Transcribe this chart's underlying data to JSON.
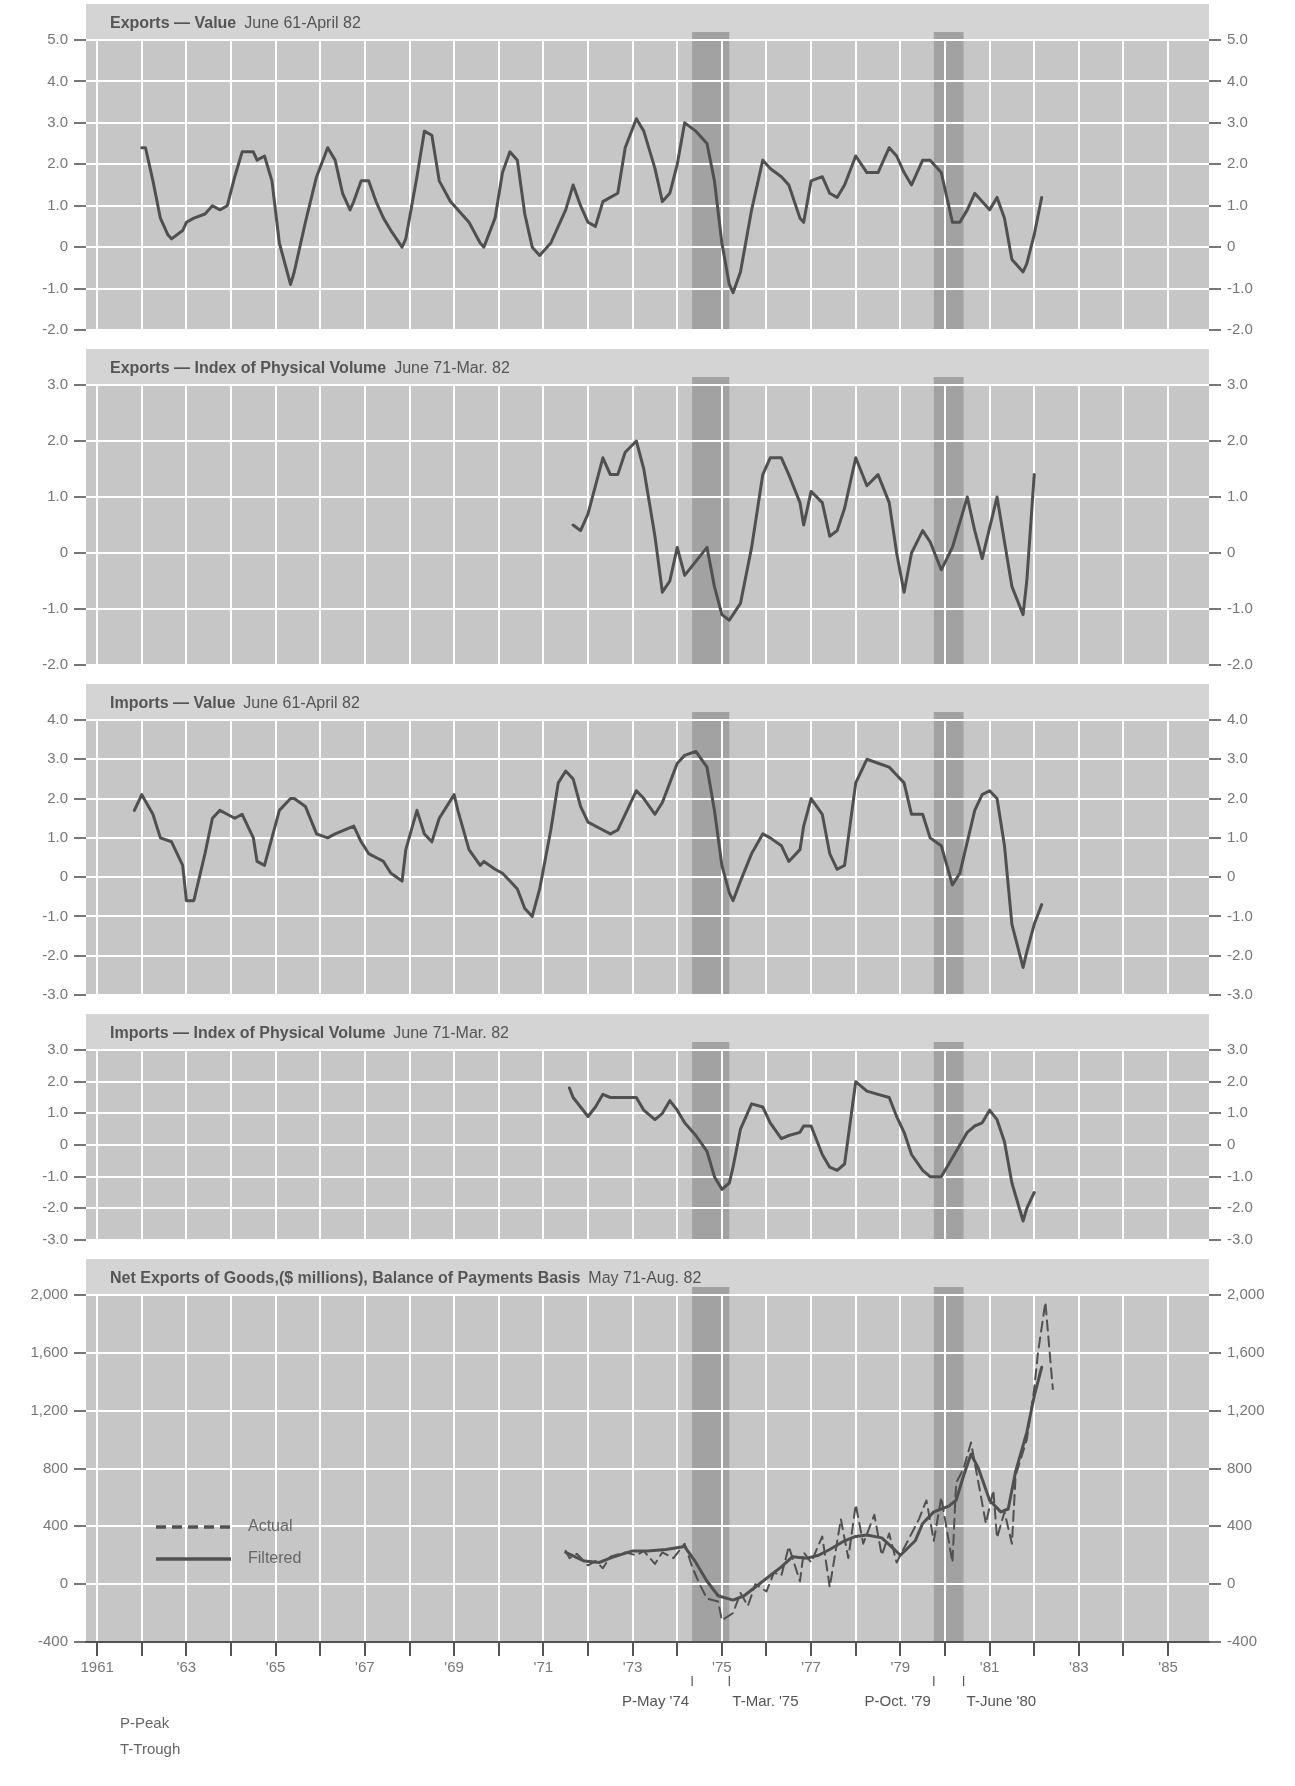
{
  "chart_data": [
    {
      "type": "line",
      "title": "Exports — Value",
      "subtitle": "June 61-April 82",
      "series": [
        {
          "color": "#505050",
          "x": [
            "1962-01",
            "1962-02",
            "1962-04",
            "1962-06",
            "1962-08",
            "1962-09",
            "1962-12",
            "1963-01",
            "1963-03",
            "1963-06",
            "1963-08",
            "1963-10",
            "1963-12",
            "1964-02",
            "1964-04",
            "1964-07",
            "1964-08",
            "1964-10",
            "1964-12",
            "1965-02",
            "1965-05",
            "1965-06",
            "1965-09",
            "1965-12",
            "1966-03",
            "1966-05",
            "1966-07",
            "1966-09",
            "1966-10",
            "1966-12",
            "1967-02",
            "1967-04",
            "1967-06",
            "1967-08",
            "1967-11",
            "1967-12",
            "1968-03",
            "1968-05",
            "1968-07",
            "1968-09",
            "1968-12",
            "1969-02",
            "1969-05",
            "1969-08",
            "1969-09",
            "1969-12",
            "1970-02",
            "1970-04",
            "1970-06",
            "1970-08",
            "1970-10",
            "1970-12",
            "1971-03",
            "1971-05",
            "1971-07",
            "1971-09",
            "1971-11",
            "1972-01",
            "1972-03",
            "1972-05",
            "1972-07",
            "1972-09",
            "1972-11",
            "1973-02",
            "1973-04",
            "1973-07",
            "1973-09",
            "1973-11",
            "1974-01",
            "1974-03",
            "1974-06",
            "1974-09",
            "1974-11",
            "1975-01",
            "1975-03",
            "1975-04",
            "1975-06",
            "1975-09",
            "1975-12",
            "1976-02",
            "1976-05",
            "1976-07",
            "1976-10",
            "1976-11",
            "1977-01",
            "1977-04",
            "1977-06",
            "1977-08",
            "1977-10",
            "1978-01",
            "1978-04",
            "1978-07",
            "1978-10",
            "1978-12",
            "1979-02",
            "1979-04",
            "1979-07",
            "1979-09",
            "1979-12",
            "1980-03",
            "1980-05",
            "1980-07",
            "1980-09",
            "1980-11",
            "1981-01",
            "1981-03",
            "1981-05",
            "1981-07",
            "1981-10",
            "1981-11",
            "1982-01",
            "1982-03"
          ],
          "values": [
            2.4,
            2.4,
            1.6,
            0.7,
            0.3,
            0.2,
            0.4,
            0.6,
            0.7,
            0.8,
            1.0,
            0.9,
            1.0,
            1.7,
            2.3,
            2.3,
            2.1,
            2.2,
            1.6,
            0.1,
            -0.9,
            -0.6,
            0.6,
            1.7,
            2.4,
            2.1,
            1.3,
            0.9,
            1.1,
            1.6,
            1.6,
            1.1,
            0.7,
            0.4,
            0,
            0.2,
            1.7,
            2.8,
            2.7,
            1.6,
            1.1,
            0.9,
            0.6,
            0.1,
            0,
            0.7,
            1.8,
            2.3,
            2.1,
            0.8,
            0,
            -0.2,
            0.1,
            0.5,
            0.9,
            1.5,
            1.0,
            0.6,
            0.5,
            1.1,
            1.2,
            1.3,
            2.4,
            3.1,
            2.8,
            1.9,
            1.1,
            1.3,
            2.0,
            3.0,
            2.8,
            2.5,
            1.6,
            0.1,
            -0.9,
            -1.1,
            -0.6,
            0.9,
            2.1,
            1.9,
            1.7,
            1.5,
            0.7,
            0.6,
            1.6,
            1.7,
            1.3,
            1.2,
            1.5,
            2.2,
            1.8,
            1.8,
            2.4,
            2.2,
            1.8,
            1.5,
            2.1,
            2.1,
            1.8,
            0.6,
            0.6,
            0.9,
            1.3,
            1.1,
            0.9,
            1.2,
            0.7,
            -0.3,
            -0.6,
            -0.4,
            0.3,
            1.2
          ]
        }
      ],
      "xlim": [
        "1960-10",
        "1985-12"
      ],
      "xticks": [
        "1961",
        "1962",
        "1963",
        "1964",
        "1965",
        "1966",
        "1967",
        "1968",
        "1969",
        "1970",
        "1971",
        "1972",
        "1973",
        "1974",
        "1975",
        "1976",
        "1977",
        "1978",
        "1979",
        "1980",
        "1981",
        "1982",
        "1983",
        "1984",
        "1985"
      ],
      "ylim": [
        -2,
        5
      ],
      "yticks": [
        {
          "value": -2,
          "label": "-2.0"
        },
        {
          "value": -1,
          "label": "-1.0"
        },
        0,
        {
          "value": 1,
          "label": "1.0"
        },
        {
          "value": 2,
          "label": "2.0"
        },
        {
          "value": 3,
          "label": "3.0"
        },
        {
          "value": 4,
          "label": "4.0"
        },
        {
          "value": 5,
          "label": "5.0"
        }
      ],
      "y2lim": [
        -2,
        5
      ],
      "y2ticks": [
        {
          "value": -2,
          "label": "-2.0"
        },
        {
          "value": -1,
          "label": "-1.0"
        },
        0,
        {
          "value": 1,
          "label": "1.0"
        },
        {
          "value": 2,
          "label": "2.0"
        },
        {
          "value": 3,
          "label": "3.0"
        },
        {
          "value": 4,
          "label": "4.0"
        },
        {
          "value": 5,
          "label": "5.0"
        }
      ],
      "bands": [
        {
          "axis": "x",
          "from": "1974-05",
          "to": "1975-03",
          "color": "#a2a2a2"
        },
        {
          "axis": "x",
          "from": "1979-10",
          "to": "1980-06",
          "color": "#a2a2a2"
        }
      ],
      "grid": true,
      "tick_labels": "y"
    },
    {
      "type": "line",
      "title": "Exports — Index of Physical Volume",
      "subtitle": "June 71-Mar. 82",
      "series": [
        {
          "color": "#505050",
          "x": [
            "1971-09",
            "1971-11",
            "1972-01",
            "1972-05",
            "1972-07",
            "1972-09",
            "1972-11",
            "1973-02",
            "1973-04",
            "1973-07",
            "1973-09",
            "1973-11",
            "1974-01",
            "1974-03",
            "1974-09",
            "1974-11",
            "1975-01",
            "1975-03",
            "1975-06",
            "1975-09",
            "1975-12",
            "1976-02",
            "1976-05",
            "1976-07",
            "1976-10",
            "1976-11",
            "1977-01",
            "1977-04",
            "1977-06",
            "1977-08",
            "1977-10",
            "1978-01",
            "1978-04",
            "1978-07",
            "1978-10",
            "1978-12",
            "1979-02",
            "1979-04",
            "1979-07",
            "1979-09",
            "1979-12",
            "1980-03",
            "1980-07",
            "1980-09",
            "1980-11",
            "1981-03",
            "1981-05",
            "1981-07",
            "1981-10",
            "1981-11",
            "1982-01"
          ],
          "values": [
            0.5,
            0.4,
            0.7,
            1.7,
            1.4,
            1.4,
            1.8,
            2.0,
            1.5,
            0.3,
            -0.7,
            -0.5,
            0.1,
            -0.4,
            0.1,
            -0.6,
            -1.1,
            -1.2,
            -0.9,
            0.1,
            1.4,
            1.7,
            1.7,
            1.4,
            0.9,
            0.5,
            1.1,
            0.9,
            0.3,
            0.4,
            0.8,
            1.7,
            1.2,
            1.4,
            0.9,
            0,
            -0.7,
            0,
            0.4,
            0.2,
            -0.3,
            0.1,
            1.0,
            0.4,
            -0.1,
            1.0,
            0.2,
            -0.6,
            -1.1,
            -0.5,
            1.4
          ]
        }
      ],
      "xlim": [
        "1960-10",
        "1985-12"
      ],
      "xticks": [
        "1961",
        "1962",
        "1963",
        "1964",
        "1965",
        "1966",
        "1967",
        "1968",
        "1969",
        "1970",
        "1971",
        "1972",
        "1973",
        "1974",
        "1975",
        "1976",
        "1977",
        "1978",
        "1979",
        "1980",
        "1981",
        "1982",
        "1983",
        "1984",
        "1985"
      ],
      "ylim": [
        -2,
        3
      ],
      "yticks": [
        {
          "value": -2,
          "label": "-2.0"
        },
        {
          "value": -1,
          "label": "-1.0"
        },
        0,
        {
          "value": 1,
          "label": "1.0"
        },
        {
          "value": 2,
          "label": "2.0"
        },
        {
          "value": 3,
          "label": "3.0"
        }
      ],
      "y2lim": [
        -2,
        3
      ],
      "y2ticks": [
        {
          "value": -2,
          "label": "-2.0"
        },
        {
          "value": -1,
          "label": "-1.0"
        },
        0,
        {
          "value": 1,
          "label": "1.0"
        },
        {
          "value": 2,
          "label": "2.0"
        },
        {
          "value": 3,
          "label": "3.0"
        }
      ],
      "bands": [
        {
          "axis": "x",
          "from": "1974-05",
          "to": "1975-03",
          "color": "#a2a2a2"
        },
        {
          "axis": "x",
          "from": "1979-10",
          "to": "1980-06",
          "color": "#a2a2a2"
        }
      ],
      "grid": true,
      "tick_labels": "y"
    },
    {
      "type": "line",
      "title": "Imports — Value",
      "subtitle": "June 61-April 82",
      "series": [
        {
          "color": "#505050",
          "x": [
            "1961-11",
            "1962-01",
            "1962-04",
            "1962-06",
            "1962-09",
            "1962-12",
            "1963-01",
            "1963-03",
            "1963-06",
            "1963-08",
            "1963-10",
            "1963-12",
            "1964-02",
            "1964-04",
            "1964-07",
            "1964-08",
            "1964-10",
            "1964-12",
            "1965-02",
            "1965-05",
            "1965-06",
            "1965-09",
            "1965-12",
            "1966-03",
            "1966-05",
            "1966-10",
            "1966-12",
            "1967-02",
            "1967-04",
            "1967-06",
            "1967-08",
            "1967-11",
            "1967-12",
            "1968-03",
            "1968-05",
            "1968-07",
            "1968-09",
            "1969-01",
            "1969-02",
            "1969-05",
            "1969-08",
            "1969-09",
            "1969-12",
            "1970-02",
            "1970-04",
            "1970-06",
            "1970-08",
            "1970-10",
            "1970-12",
            "1971-03",
            "1971-05",
            "1971-07",
            "1971-09",
            "1971-11",
            "1972-01",
            "1972-05",
            "1972-07",
            "1972-09",
            "1972-11",
            "1973-02",
            "1973-04",
            "1973-07",
            "1973-09",
            "1973-11",
            "1974-01",
            "1974-03",
            "1974-06",
            "1974-09",
            "1974-11",
            "1975-01",
            "1975-03",
            "1975-04",
            "1975-06",
            "1975-09",
            "1975-12",
            "1976-02",
            "1976-05",
            "1976-07",
            "1976-10",
            "1976-11",
            "1977-01",
            "1977-04",
            "1977-06",
            "1977-08",
            "1977-10",
            "1978-01",
            "1978-04",
            "1978-07",
            "1978-10",
            "1978-12",
            "1979-02",
            "1979-04",
            "1979-07",
            "1979-09",
            "1979-12",
            "1980-03",
            "1980-05",
            "1980-07",
            "1980-09",
            "1980-11",
            "1981-01",
            "1981-03",
            "1981-05",
            "1981-07",
            "1981-10",
            "1981-11",
            "1982-01",
            "1982-03"
          ],
          "values": [
            1.7,
            2.1,
            1.6,
            1.0,
            0.9,
            0.3,
            -0.6,
            -0.6,
            0.6,
            1.5,
            1.7,
            1.6,
            1.5,
            1.6,
            1.0,
            0.4,
            0.3,
            1.0,
            1.7,
            2.0,
            2.0,
            1.8,
            1.1,
            1.0,
            1.1,
            1.3,
            0.9,
            0.6,
            0.5,
            0.4,
            0.1,
            -0.1,
            0.7,
            1.7,
            1.1,
            0.9,
            1.5,
            2.1,
            1.7,
            0.7,
            0.3,
            0.4,
            0.2,
            0.1,
            -0.1,
            -0.3,
            -0.8,
            -1.0,
            -0.3,
            1.2,
            2.4,
            2.7,
            2.5,
            1.8,
            1.4,
            1.2,
            1.1,
            1.2,
            1.6,
            2.2,
            2.0,
            1.6,
            1.9,
            2.4,
            2.9,
            3.1,
            3.2,
            2.8,
            1.7,
            0.3,
            -0.4,
            -0.6,
            -0.1,
            0.6,
            1.1,
            1.0,
            0.8,
            0.4,
            0.7,
            1.3,
            2.0,
            1.6,
            0.6,
            0.2,
            0.3,
            2.4,
            3.0,
            2.9,
            2.8,
            2.6,
            2.4,
            1.6,
            1.6,
            1.0,
            0.8,
            -0.2,
            0.1,
            0.9,
            1.7,
            2.1,
            2.2,
            2.0,
            0.8,
            -1.2,
            -2.3,
            -1.9,
            -1.2,
            -0.7
          ]
        }
      ],
      "xlim": [
        "1960-10",
        "1985-12"
      ],
      "xticks": [
        "1961",
        "1962",
        "1963",
        "1964",
        "1965",
        "1966",
        "1967",
        "1968",
        "1969",
        "1970",
        "1971",
        "1972",
        "1973",
        "1974",
        "1975",
        "1976",
        "1977",
        "1978",
        "1979",
        "1980",
        "1981",
        "1982",
        "1983",
        "1984",
        "1985"
      ],
      "ylim": [
        -3,
        4
      ],
      "yticks": [
        {
          "value": -3,
          "label": "-3.0"
        },
        {
          "value": -2,
          "label": "-2.0"
        },
        {
          "value": -1,
          "label": "-1.0"
        },
        0,
        {
          "value": 1,
          "label": "1.0"
        },
        {
          "value": 2,
          "label": "2.0"
        },
        {
          "value": 3,
          "label": "3.0"
        },
        {
          "value": 4,
          "label": "4.0"
        }
      ],
      "y2lim": [
        -3,
        4
      ],
      "y2ticks": [
        {
          "value": -3,
          "label": "-3.0"
        },
        {
          "value": -2,
          "label": "-2.0"
        },
        {
          "value": -1,
          "label": "-1.0"
        },
        0,
        {
          "value": 1,
          "label": "1.0"
        },
        {
          "value": 2,
          "label": "2.0"
        },
        {
          "value": 3,
          "label": "3.0"
        },
        {
          "value": 4,
          "label": "4.0"
        }
      ],
      "bands": [
        {
          "axis": "x",
          "from": "1974-05",
          "to": "1975-03",
          "color": "#a2a2a2"
        },
        {
          "axis": "x",
          "from": "1979-10",
          "to": "1980-06",
          "color": "#a2a2a2"
        }
      ],
      "grid": true,
      "tick_labels": "y"
    },
    {
      "type": "line",
      "title": "Imports — Index of Physical Volume",
      "subtitle": "June 71-Mar. 82",
      "series": [
        {
          "color": "#505050",
          "x": [
            "1971-08",
            "1971-09",
            "1971-11",
            "1972-01",
            "1972-03",
            "1972-05",
            "1972-07",
            "1972-09",
            "1972-11",
            "1973-02",
            "1973-04",
            "1973-07",
            "1973-09",
            "1973-11",
            "1974-01",
            "1974-03",
            "1974-06",
            "1974-09",
            "1974-11",
            "1975-01",
            "1975-03",
            "1975-04",
            "1975-06",
            "1975-09",
            "1975-12",
            "1976-02",
            "1976-05",
            "1976-07",
            "1976-10",
            "1976-11",
            "1977-01",
            "1977-04",
            "1977-06",
            "1977-08",
            "1977-10",
            "1978-01",
            "1978-04",
            "1978-07",
            "1978-10",
            "1978-12",
            "1979-02",
            "1979-04",
            "1979-07",
            "1979-09",
            "1979-12",
            "1980-03",
            "1980-07",
            "1980-09",
            "1980-11",
            "1981-01",
            "1981-03",
            "1981-05",
            "1981-07",
            "1981-10",
            "1981-11",
            "1982-01"
          ],
          "values": [
            1.8,
            1.5,
            1.2,
            0.9,
            1.2,
            1.6,
            1.5,
            1.5,
            1.5,
            1.5,
            1.1,
            0.8,
            1.0,
            1.4,
            1.1,
            0.7,
            0.3,
            -0.2,
            -1.0,
            -1.4,
            -1.2,
            -0.7,
            0.5,
            1.3,
            1.2,
            0.7,
            0.2,
            0.3,
            0.4,
            0.6,
            0.6,
            -0.3,
            -0.7,
            -0.8,
            -0.6,
            2.0,
            1.7,
            1.6,
            1.5,
            0.9,
            0.4,
            -0.3,
            -0.8,
            -1.0,
            -1.0,
            -0.4,
            0.4,
            0.6,
            0.7,
            1.1,
            0.8,
            0.1,
            -1.2,
            -2.4,
            -2.0,
            -1.5
          ]
        }
      ],
      "xlim": [
        "1960-10",
        "1985-12"
      ],
      "xticks": [
        "1961",
        "1962",
        "1963",
        "1964",
        "1965",
        "1966",
        "1967",
        "1968",
        "1969",
        "1970",
        "1971",
        "1972",
        "1973",
        "1974",
        "1975",
        "1976",
        "1977",
        "1978",
        "1979",
        "1980",
        "1981",
        "1982",
        "1983",
        "1984",
        "1985"
      ],
      "ylim": [
        -3,
        3
      ],
      "yticks": [
        {
          "value": -3,
          "label": "-3.0"
        },
        {
          "value": -2,
          "label": "-2.0"
        },
        {
          "value": -1,
          "label": "-1.0"
        },
        0,
        {
          "value": 1,
          "label": "1.0"
        },
        {
          "value": 2,
          "label": "2.0"
        },
        {
          "value": 3,
          "label": "3.0"
        }
      ],
      "y2lim": [
        -3,
        3
      ],
      "y2ticks": [
        {
          "value": -3,
          "label": "-3.0"
        },
        {
          "value": -2,
          "label": "-2.0"
        },
        {
          "value": -1,
          "label": "-1.0"
        },
        0,
        {
          "value": 1,
          "label": "1.0"
        },
        {
          "value": 2,
          "label": "2.0"
        },
        {
          "value": 3,
          "label": "3.0"
        }
      ],
      "bands": [
        {
          "axis": "x",
          "from": "1974-05",
          "to": "1975-03",
          "color": "#a2a2a2"
        },
        {
          "axis": "x",
          "from": "1979-10",
          "to": "1980-06",
          "color": "#a2a2a2"
        }
      ],
      "grid": true,
      "tick_labels": "y"
    },
    {
      "type": "line",
      "title": "Net Exports of Goods,($ millions), Balance of Payments Basis",
      "subtitle": "May 71-Aug. 82",
      "series": [
        {
          "name": "Actual",
          "color": "#505050",
          "line_style": "dashed",
          "x": [
            "1971-07",
            "1971-08",
            "1971-10",
            "1972-01",
            "1972-03",
            "1972-05",
            "1972-07",
            "1972-11",
            "1973-02",
            "1973-04",
            "1973-07",
            "1973-09",
            "1973-12",
            "1974-03",
            "1974-05",
            "1974-07",
            "1974-09",
            "1974-12",
            "1975-01",
            "1975-04",
            "1975-06",
            "1975-08",
            "1975-10",
            "1976-01",
            "1976-03",
            "1976-05",
            "1976-07",
            "1976-10",
            "1976-11",
            "1977-01",
            "1977-04",
            "1977-06",
            "1977-09",
            "1977-11",
            "1978-01",
            "1978-03",
            "1978-06",
            "1978-08",
            "1978-10",
            "1978-12",
            "1979-02",
            "1979-06",
            "1979-08",
            "1979-10",
            "1979-12",
            "1980-03",
            "1980-04",
            "1980-06",
            "1980-08",
            "1980-10",
            "1980-12",
            "1981-02",
            "1981-03",
            "1981-05",
            "1981-07",
            "1981-08",
            "1981-11",
            "1982-01",
            "1982-02",
            "1982-04",
            "1982-05",
            "1982-06"
          ],
          "values": [
            230,
            180,
            210,
            130,
            160,
            110,
            190,
            220,
            200,
            230,
            140,
            220,
            180,
            280,
            120,
            0,
            -100,
            -120,
            -250,
            -200,
            -60,
            -150,
            0,
            -50,
            80,
            60,
            260,
            20,
            220,
            150,
            330,
            -20,
            450,
            180,
            550,
            280,
            480,
            200,
            350,
            150,
            250,
            450,
            580,
            300,
            600,
            150,
            700,
            800,
            980,
            700,
            420,
            650,
            320,
            500,
            280,
            750,
            1000,
            1350,
            1600,
            1950,
            1650,
            1350
          ]
        },
        {
          "name": "Filtered",
          "color": "#505050",
          "line_style": "solid",
          "x": [
            "1971-07",
            "1971-12",
            "1972-04",
            "1972-08",
            "1973-01",
            "1973-05",
            "1973-10",
            "1974-03",
            "1974-06",
            "1974-09",
            "1974-12",
            "1975-04",
            "1975-07",
            "1975-10",
            "1976-02",
            "1976-05",
            "1976-08",
            "1976-12",
            "1977-03",
            "1977-06",
            "1977-10",
            "1978-01",
            "1978-04",
            "1978-08",
            "1978-11",
            "1979-01",
            "1979-05",
            "1979-07",
            "1979-10",
            "1980-02",
            "1980-04",
            "1980-06",
            "1980-08",
            "1980-10",
            "1981-01",
            "1981-04",
            "1981-06",
            "1981-08",
            "1981-11",
            "1982-01",
            "1982-03"
          ],
          "values": [
            220,
            160,
            150,
            190,
            230,
            230,
            240,
            260,
            150,
            20,
            -80,
            -110,
            -80,
            -20,
            60,
            120,
            190,
            180,
            200,
            240,
            300,
            330,
            340,
            320,
            250,
            200,
            300,
            420,
            500,
            540,
            580,
            750,
            900,
            800,
            580,
            500,
            520,
            780,
            1050,
            1300,
            1500
          ]
        }
      ],
      "xlim": [
        "1960-10",
        "1985-12"
      ],
      "xticks": [
        "1961",
        {
          "value": "1962",
          "label": null
        },
        {
          "value": "1963",
          "label": "'63"
        },
        {
          "value": "1964",
          "label": null
        },
        {
          "value": "1965",
          "label": "'65"
        },
        {
          "value": "1966",
          "label": null
        },
        {
          "value": "1967",
          "label": "'67"
        },
        {
          "value": "1968",
          "label": null
        },
        {
          "value": "1969",
          "label": "'69"
        },
        {
          "value": "1970",
          "label": null
        },
        {
          "value": "1971",
          "label": "'71"
        },
        {
          "value": "1972",
          "label": null
        },
        {
          "value": "1973",
          "label": "'73"
        },
        {
          "value": "1974",
          "label": null
        },
        {
          "value": "1975",
          "label": "'75"
        },
        {
          "value": "1976",
          "label": null
        },
        {
          "value": "1977",
          "label": "'77"
        },
        {
          "value": "1978",
          "label": null
        },
        {
          "value": "1979",
          "label": "'79"
        },
        {
          "value": "1980",
          "label": null
        },
        {
          "value": "1981",
          "label": "'81"
        },
        {
          "value": "1982",
          "label": null
        },
        {
          "value": "1983",
          "label": "'83"
        },
        {
          "value": "1984",
          "label": null
        },
        {
          "value": "1985",
          "label": "'85"
        }
      ],
      "ylim": [
        -400,
        2000
      ],
      "yticks": [
        -400,
        0,
        400,
        800,
        {
          "value": 1200,
          "label": "1,200"
        },
        {
          "value": 1600,
          "label": "1,600"
        },
        {
          "value": 2000,
          "label": "2,000"
        }
      ],
      "y2lim": [
        -400,
        2000
      ],
      "y2ticks": [
        -400,
        0,
        400,
        800,
        {
          "value": 1200,
          "label": "1,200"
        },
        {
          "value": 1600,
          "label": "1,600"
        },
        {
          "value": 2000,
          "label": "2,000"
        }
      ],
      "bands": [
        {
          "axis": "x",
          "from": "1974-05",
          "to": "1975-03",
          "color": "#a2a2a2"
        },
        {
          "axis": "x",
          "from": "1979-10",
          "to": "1980-06",
          "color": "#a2a2a2"
        }
      ],
      "ref_lines": [
        {
          "axis": "x",
          "value": "1974-05",
          "label": "P-May '74",
          "color": "#555555",
          "line_style": "dashed"
        },
        {
          "axis": "x",
          "value": "1975-03",
          "label": "T-Mar. '75",
          "color": "#555555",
          "line_style": "dashed"
        },
        {
          "axis": "x",
          "value": "1979-10",
          "label": "P-Oct. '79",
          "color": "#555555",
          "line_style": "dashed"
        },
        {
          "axis": "x",
          "value": "1980-06",
          "label": "T-June '80",
          "color": "#555555",
          "line_style": "dashed"
        }
      ],
      "annotations": [
        "P-Peak",
        "T-Trough"
      ],
      "legend": "bottom left",
      "grid": true
    }
  ]
}
